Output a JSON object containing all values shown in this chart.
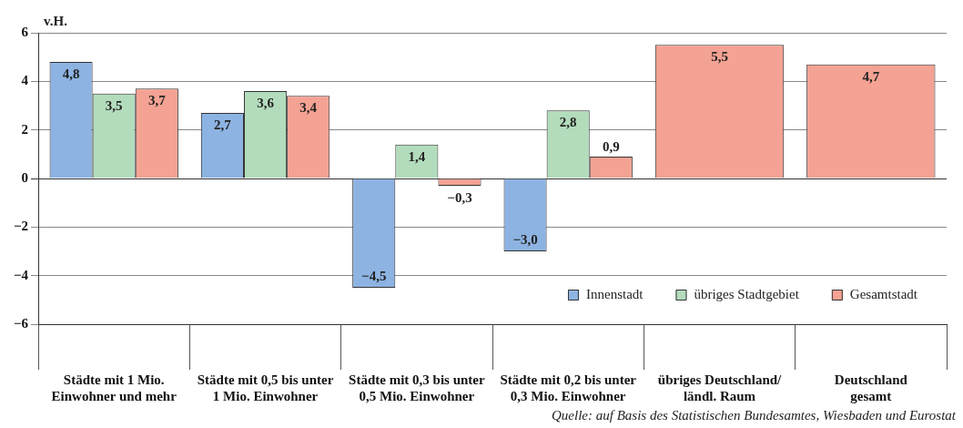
{
  "chart_data": {
    "type": "bar",
    "ylabel": "v.H.",
    "categories": [
      "Städte mit 1 Mio.\nEinwohner und mehr",
      "Städte mit 0,5 bis unter\n1 Mio. Einwohner",
      "Städte mit 0,3 bis unter\n0,5 Mio. Einwohner",
      "Städte mit 0,2 bis unter\n0,3 Mio. Einwohner",
      "übriges Deutschland/\nländl. Raum",
      "Deutschland\ngesamt"
    ],
    "series": [
      {
        "name": "Innenstadt",
        "color": "#8db3e2",
        "values": [
          4.8,
          2.7,
          -4.5,
          -3.0,
          null,
          null
        ],
        "value_labels": [
          "4,8",
          "2,7",
          "−4,5",
          "−3,0",
          null,
          null
        ]
      },
      {
        "name": "übriges Stadtgebiet",
        "color": "#b3dcbc",
        "values": [
          3.5,
          3.6,
          1.4,
          2.8,
          null,
          null
        ],
        "value_labels": [
          "3,5",
          "3,6",
          "1,4",
          "2,8",
          null,
          null
        ]
      },
      {
        "name": "Gesamtstadt",
        "color": "#f4a293",
        "values": [
          3.7,
          3.4,
          -0.3,
          0.9,
          5.5,
          4.7
        ],
        "value_labels": [
          "3,7",
          "3,4",
          "−0,3",
          "0,9",
          "5,5",
          "4,7"
        ]
      }
    ],
    "ylim": [
      -6,
      6
    ],
    "yticks": [
      {
        "value": -6,
        "label": "−6"
      },
      {
        "value": -4,
        "label": "−4"
      },
      {
        "value": -2,
        "label": "−2"
      },
      0,
      2,
      4,
      6
    ],
    "grid": "y",
    "legend": "bottom right",
    "annotations": [
      "Quelle: auf Basis des Statistischen Bundesamtes, Wiesbaden und Eurostat"
    ]
  }
}
